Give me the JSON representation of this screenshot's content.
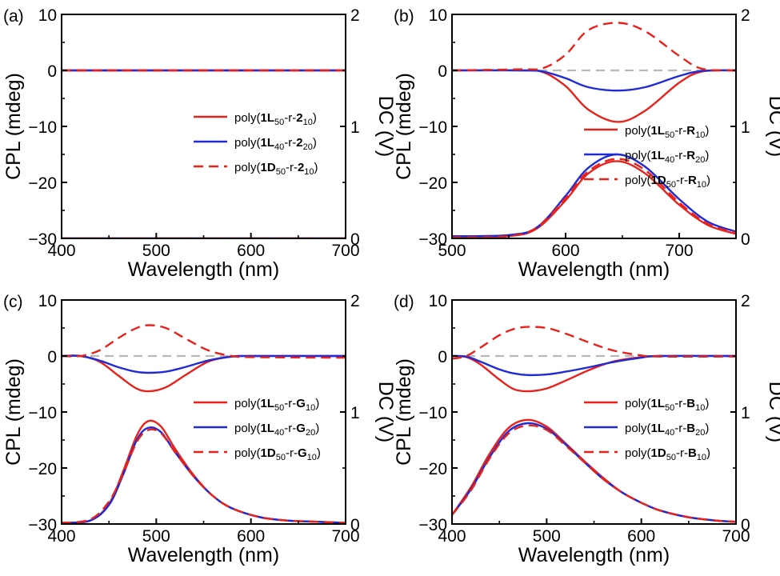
{
  "figure": {
    "ylabel_left": "CPL (mdeg)",
    "ylabel_right": "DC (V)",
    "xlabel": "Wavelength (nm)"
  },
  "chart_data": [
    {
      "type": "line",
      "panel": "(a)",
      "xlim": [
        400,
        700
      ],
      "x_ticks": [
        "400",
        "500",
        "600",
        "700"
      ],
      "ylim_left": [
        -30,
        10
      ],
      "y_ticks_left": [
        "10",
        "0",
        "−10",
        "−20",
        "−30"
      ],
      "ylim_right": [
        0,
        2
      ],
      "y_ticks_right": [
        "2",
        "1",
        "0"
      ],
      "xlabel": "Wavelength (nm)",
      "ylabel_left": "CPL (mdeg)",
      "ylabel_right": "DC (V)",
      "legend_position": "right",
      "legend": [
        {
          "pre": "poly(",
          "b1": "1L",
          "sub1": "50",
          "mid": "-r-",
          "b2": "2",
          "sub2": "10",
          "post": ")",
          "color": "#e8221b",
          "dash": false
        },
        {
          "pre": "poly(",
          "b1": "1L",
          "sub1": "40",
          "mid": "-r-",
          "b2": "2",
          "sub2": "20",
          "post": ")",
          "color": "#1f2bd6",
          "dash": false
        },
        {
          "pre": "poly(",
          "b1": "1D",
          "sub1": "50",
          "mid": "-r-",
          "b2": "2",
          "sub2": "10",
          "post": ")",
          "color": "#e8221b",
          "dash": true
        }
      ],
      "series": [
        {
          "role": "cpl",
          "color": "#e8221b",
          "dash": false,
          "x": [
            400,
            700
          ],
          "y": [
            0,
            0
          ]
        },
        {
          "role": "cpl",
          "color": "#1f2bd6",
          "dash": false,
          "x": [
            400,
            700
          ],
          "y": [
            0,
            0
          ]
        },
        {
          "role": "cpl",
          "color": "#e8221b",
          "dash": true,
          "x": [
            400,
            700
          ],
          "y": [
            0,
            0
          ]
        },
        {
          "role": "dc",
          "color": "#e8221b",
          "dash": false,
          "x": [
            400,
            700
          ],
          "y": [
            0,
            0
          ]
        },
        {
          "role": "dc",
          "color": "#1f2bd6",
          "dash": false,
          "x": [
            400,
            700
          ],
          "y": [
            0,
            0
          ]
        },
        {
          "role": "dc",
          "color": "#e8221b",
          "dash": true,
          "x": [
            400,
            700
          ],
          "y": [
            0,
            0
          ]
        }
      ]
    },
    {
      "type": "line",
      "panel": "(b)",
      "xlim": [
        500,
        750
      ],
      "x_ticks": [
        "500",
        "600",
        "700"
      ],
      "ylim_left": [
        -30,
        10
      ],
      "y_ticks_left": [
        "10",
        "0",
        "−10",
        "−20",
        "−30"
      ],
      "ylim_right": [
        0,
        2
      ],
      "y_ticks_right": [
        "2",
        "1",
        "0"
      ],
      "xlabel": "Wavelength (nm)",
      "ylabel_left": "CPL (mdeg)",
      "ylabel_right": "DC (V)",
      "legend_position": "right",
      "legend": [
        {
          "pre": "poly(",
          "b1": "1L",
          "sub1": "50",
          "mid": "-r-",
          "b2": "R",
          "sub2": "10",
          "post": ")",
          "color": "#e8221b",
          "dash": false
        },
        {
          "pre": "poly(",
          "b1": "1L",
          "sub1": "40",
          "mid": "-r-",
          "b2": "R",
          "sub2": "20",
          "post": ")",
          "color": "#1f2bd6",
          "dash": false
        },
        {
          "pre": "poly(",
          "b1": "1D",
          "sub1": "50",
          "mid": "-r-",
          "b2": "R",
          "sub2": "10",
          "post": ")",
          "color": "#e8221b",
          "dash": true
        }
      ],
      "series": [
        {
          "role": "baseline",
          "color": "#b8b8b8",
          "dash": true,
          "x": [
            500,
            750
          ],
          "y": [
            0,
            0
          ]
        },
        {
          "role": "cpl",
          "color": "#e8221b",
          "dash": false,
          "x": [
            500,
            560,
            580,
            600,
            620,
            646,
            670,
            700,
            720,
            750
          ],
          "y": [
            0,
            0,
            -0.3,
            -2.8,
            -7.0,
            -9.2,
            -7.2,
            -2.2,
            -0.2,
            0
          ]
        },
        {
          "role": "cpl",
          "color": "#1f2bd6",
          "dash": false,
          "x": [
            500,
            560,
            580,
            600,
            620,
            646,
            670,
            700,
            720,
            750
          ],
          "y": [
            0,
            0,
            -0.2,
            -1.4,
            -3.0,
            -3.6,
            -3.0,
            -1.0,
            -0.1,
            0
          ]
        },
        {
          "role": "cpl",
          "color": "#e8221b",
          "dash": true,
          "x": [
            500,
            560,
            580,
            600,
            620,
            646,
            670,
            700,
            720,
            750
          ],
          "y": [
            0,
            0.2,
            0.4,
            2.8,
            7.2,
            8.5,
            7.0,
            2.6,
            0.3,
            0
          ]
        },
        {
          "role": "dc",
          "color": "#e8221b",
          "dash": false,
          "x": [
            500,
            550,
            575,
            600,
            620,
            645,
            670,
            700,
            725,
            750
          ],
          "y": [
            0.01,
            0.02,
            0.09,
            0.34,
            0.58,
            0.69,
            0.58,
            0.3,
            0.12,
            0.04
          ]
        },
        {
          "role": "dc",
          "color": "#1f2bd6",
          "dash": false,
          "x": [
            500,
            550,
            575,
            600,
            620,
            645,
            670,
            700,
            725,
            750
          ],
          "y": [
            0.02,
            0.03,
            0.1,
            0.38,
            0.63,
            0.75,
            0.64,
            0.35,
            0.15,
            0.06
          ]
        },
        {
          "role": "dc",
          "color": "#e8221b",
          "dash": true,
          "x": [
            500,
            550,
            575,
            600,
            620,
            645,
            670,
            700,
            725,
            750
          ],
          "y": [
            0.01,
            0.02,
            0.1,
            0.36,
            0.6,
            0.71,
            0.61,
            0.32,
            0.13,
            0.05
          ]
        }
      ]
    },
    {
      "type": "line",
      "panel": "(c)",
      "xlim": [
        400,
        700
      ],
      "x_ticks": [
        "400",
        "500",
        "600",
        "700"
      ],
      "ylim_left": [
        -30,
        10
      ],
      "y_ticks_left": [
        "10",
        "0",
        "−10",
        "−20",
        "−30"
      ],
      "ylim_right": [
        0,
        2
      ],
      "y_ticks_right": [
        "2",
        "1",
        "0"
      ],
      "xlabel": "Wavelength (nm)",
      "ylabel_left": "CPL (mdeg)",
      "ylabel_right": "DC (V)",
      "legend_position": "right",
      "legend": [
        {
          "pre": "poly(",
          "b1": "1L",
          "sub1": "50",
          "mid": "-r-",
          "b2": "G",
          "sub2": "10",
          "post": ")",
          "color": "#e8221b",
          "dash": false
        },
        {
          "pre": "poly(",
          "b1": "1L",
          "sub1": "40",
          "mid": "-r-",
          "b2": "G",
          "sub2": "20",
          "post": ")",
          "color": "#1f2bd6",
          "dash": false
        },
        {
          "pre": "poly(",
          "b1": "1D",
          "sub1": "50",
          "mid": "-r-",
          "b2": "G",
          "sub2": "10",
          "post": ")",
          "color": "#e8221b",
          "dash": true
        }
      ],
      "series": [
        {
          "role": "baseline",
          "color": "#b8b8b8",
          "dash": true,
          "x": [
            400,
            700
          ],
          "y": [
            0,
            0
          ]
        },
        {
          "role": "cpl",
          "color": "#e8221b",
          "dash": false,
          "x": [
            400,
            420,
            440,
            460,
            478,
            492,
            510,
            530,
            555,
            580,
            600,
            700
          ],
          "y": [
            0,
            0,
            -1.0,
            -3.5,
            -5.7,
            -6.3,
            -5.6,
            -3.5,
            -1.0,
            -0.1,
            0,
            0
          ]
        },
        {
          "role": "cpl",
          "color": "#1f2bd6",
          "dash": false,
          "x": [
            400,
            420,
            440,
            460,
            478,
            492,
            510,
            530,
            555,
            580,
            600,
            700
          ],
          "y": [
            0,
            0,
            -0.8,
            -2.0,
            -2.8,
            -3.0,
            -2.8,
            -2.0,
            -0.8,
            -0.1,
            0,
            0
          ]
        },
        {
          "role": "cpl",
          "color": "#e8221b",
          "dash": true,
          "x": [
            400,
            420,
            440,
            460,
            478,
            492,
            510,
            530,
            555,
            580,
            600,
            700
          ],
          "y": [
            0,
            0,
            1.0,
            3.2,
            4.9,
            5.5,
            5.0,
            3.2,
            1.0,
            0,
            -0.2,
            -0.3
          ]
        },
        {
          "role": "dc",
          "color": "#e8221b",
          "dash": false,
          "x": [
            400,
            430,
            450,
            465,
            480,
            492,
            505,
            520,
            540,
            560,
            580,
            610,
            640,
            670,
            700
          ],
          "y": [
            0.01,
            0.03,
            0.18,
            0.47,
            0.8,
            0.92,
            0.87,
            0.67,
            0.43,
            0.25,
            0.14,
            0.06,
            0.03,
            0.02,
            0.01
          ]
        },
        {
          "role": "dc",
          "color": "#1f2bd6",
          "dash": false,
          "x": [
            400,
            430,
            450,
            465,
            480,
            492,
            505,
            520,
            540,
            560,
            580,
            610,
            640,
            670,
            700
          ],
          "y": [
            0.01,
            0.03,
            0.17,
            0.44,
            0.76,
            0.86,
            0.82,
            0.64,
            0.42,
            0.25,
            0.14,
            0.06,
            0.03,
            0.02,
            0.01
          ]
        },
        {
          "role": "dc",
          "color": "#e8221b",
          "dash": true,
          "x": [
            400,
            430,
            450,
            465,
            480,
            492,
            505,
            520,
            540,
            560,
            580,
            610,
            640,
            670,
            700
          ],
          "y": [
            0.01,
            0.04,
            0.2,
            0.45,
            0.74,
            0.84,
            0.81,
            0.64,
            0.42,
            0.25,
            0.14,
            0.06,
            0.03,
            0.02,
            0.01
          ]
        }
      ]
    },
    {
      "type": "line",
      "panel": "(d)",
      "xlim": [
        400,
        700
      ],
      "x_ticks": [
        "400",
        "500",
        "600",
        "700"
      ],
      "ylim_left": [
        -30,
        10
      ],
      "y_ticks_left": [
        "10",
        "0",
        "−10",
        "−20",
        "−30"
      ],
      "ylim_right": [
        0,
        2
      ],
      "y_ticks_right": [
        "2",
        "1",
        "0"
      ],
      "xlabel": "Wavelength (nm)",
      "ylabel_left": "CPL (mdeg)",
      "ylabel_right": "DC (V)",
      "legend_position": "right",
      "legend": [
        {
          "pre": "poly(",
          "b1": "1L",
          "sub1": "50",
          "mid": "-r-",
          "b2": "B",
          "sub2": "10",
          "post": ")",
          "color": "#e8221b",
          "dash": false
        },
        {
          "pre": "poly(",
          "b1": "1L",
          "sub1": "40",
          "mid": "-r-",
          "b2": "B",
          "sub2": "20",
          "post": ")",
          "color": "#1f2bd6",
          "dash": false
        },
        {
          "pre": "poly(",
          "b1": "1D",
          "sub1": "50",
          "mid": "-r-",
          "b2": "B",
          "sub2": "10",
          "post": ")",
          "color": "#e8221b",
          "dash": true
        }
      ],
      "series": [
        {
          "role": "baseline",
          "color": "#b8b8b8",
          "dash": true,
          "x": [
            400,
            700
          ],
          "y": [
            0,
            0
          ]
        },
        {
          "role": "cpl",
          "color": "#e8221b",
          "dash": false,
          "x": [
            400,
            415,
            430,
            450,
            465,
            480,
            500,
            520,
            545,
            570,
            600,
            620,
            700
          ],
          "y": [
            0,
            -0.2,
            -1.5,
            -4.2,
            -5.9,
            -6.3,
            -5.8,
            -4.4,
            -2.5,
            -1.0,
            -0.2,
            0,
            0
          ]
        },
        {
          "role": "cpl",
          "color": "#1f2bd6",
          "dash": false,
          "x": [
            400,
            415,
            430,
            450,
            465,
            480,
            500,
            520,
            545,
            570,
            600,
            620,
            700
          ],
          "y": [
            0,
            -0.1,
            -1.0,
            -2.4,
            -3.1,
            -3.4,
            -3.3,
            -2.8,
            -2.0,
            -1.1,
            -0.3,
            0,
            0
          ]
        },
        {
          "role": "cpl",
          "color": "#e8221b",
          "dash": true,
          "x": [
            400,
            415,
            430,
            450,
            465,
            480,
            500,
            520,
            545,
            570,
            600,
            620,
            700
          ],
          "y": [
            -0.5,
            0,
            1.5,
            3.7,
            4.8,
            5.2,
            5.0,
            4.0,
            2.4,
            1.0,
            0.1,
            -0.1,
            -0.1
          ]
        },
        {
          "role": "dc",
          "color": "#e8221b",
          "dash": false,
          "x": [
            400,
            420,
            440,
            460,
            480,
            500,
            520,
            540,
            560,
            580,
            600,
            620,
            650,
            680,
            700
          ],
          "y": [
            0.08,
            0.33,
            0.63,
            0.86,
            0.93,
            0.87,
            0.72,
            0.56,
            0.41,
            0.28,
            0.19,
            0.12,
            0.06,
            0.03,
            0.02
          ]
        },
        {
          "role": "dc",
          "color": "#1f2bd6",
          "dash": false,
          "x": [
            400,
            420,
            440,
            460,
            480,
            500,
            520,
            540,
            560,
            580,
            600,
            620,
            650,
            680,
            700
          ],
          "y": [
            0.08,
            0.31,
            0.6,
            0.83,
            0.9,
            0.85,
            0.71,
            0.55,
            0.4,
            0.28,
            0.19,
            0.12,
            0.06,
            0.03,
            0.02
          ]
        },
        {
          "role": "dc",
          "color": "#e8221b",
          "dash": true,
          "x": [
            400,
            420,
            440,
            460,
            480,
            500,
            520,
            540,
            560,
            580,
            600,
            620,
            650,
            680,
            700
          ],
          "y": [
            0.08,
            0.3,
            0.59,
            0.81,
            0.88,
            0.84,
            0.7,
            0.55,
            0.4,
            0.28,
            0.19,
            0.12,
            0.06,
            0.03,
            0.02
          ]
        }
      ]
    }
  ]
}
